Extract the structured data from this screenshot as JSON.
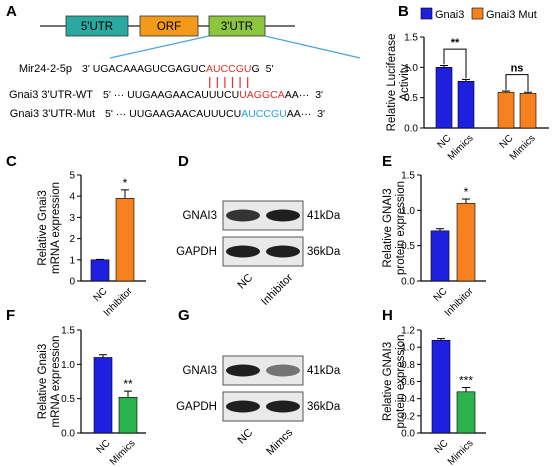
{
  "panels": {
    "A": "A",
    "B": "B",
    "C": "C",
    "D": "D",
    "E": "E",
    "F": "F",
    "G": "G",
    "H": "H"
  },
  "diagram": {
    "utr5": "5'UTR",
    "orf": "ORF",
    "utr3": "3'UTR",
    "colors": {
      "utr5": "#2aa9a0",
      "orf": "#f39a1d",
      "utr3": "#8cc63f",
      "line": "#4aa5dc"
    },
    "rows": [
      {
        "name": "Mir24-2-5p",
        "left_end": "3'",
        "seq_plain": "UGACAAAGUCGAGUC",
        "seq_hl": "AUCCGU",
        "seq_tail": "G",
        "right_end": "5'",
        "hl_color": "#e0312b"
      },
      {
        "name": "Gnai3 3'UTR-WT",
        "left_end": "5' ···",
        "seq_plain": "UUGAAGAACAUUUCU",
        "seq_hl": "UAGGCA",
        "seq_tail": "AA···",
        "right_end": "3'",
        "hl_color": "#e0312b"
      },
      {
        "name": "Gnai3 3'UTR-Mut",
        "left_end": "5' ···",
        "seq_plain": "UUGAAGAACAUUUCU",
        "seq_hl": "AUCCGU",
        "seq_tail": "AA···",
        "right_end": "3'",
        "hl_color": "#29a3dd"
      }
    ]
  },
  "blots": {
    "D": {
      "proteins": [
        "GNAI3",
        "GAPDH"
      ],
      "sizes": [
        "41kDa",
        "36kDa"
      ],
      "lanes": [
        "NC",
        "Inhibitor"
      ]
    },
    "G": {
      "proteins": [
        "GNAI3",
        "GAPDH"
      ],
      "sizes": [
        "41kDa",
        "36kDa"
      ],
      "lanes": [
        "NC",
        "Mimcs"
      ]
    }
  },
  "chart_data": [
    {
      "panel": "B",
      "type": "bar",
      "ylabel": "Relative Luciferase Activity",
      "ylim": [
        0,
        1.5
      ],
      "yticks": [
        "0.0",
        "0.5",
        "1.0",
        "1.5"
      ],
      "groups": [
        "Gnai3",
        "Gnai3 Mut"
      ],
      "categories": [
        "NC",
        "Mimics",
        "NC",
        "Mimics"
      ],
      "values": [
        1.0,
        0.77,
        0.59,
        0.57
      ],
      "errors": [
        0.03,
        0.03,
        0.02,
        0.02
      ],
      "colors": [
        "#1f1fe0",
        "#1f1fe0",
        "#f5821f",
        "#f5821f"
      ],
      "legend": [
        {
          "name": "Gnai3",
          "color": "#1f1fe0"
        },
        {
          "name": "Gnai3 Mut",
          "color": "#f5821f"
        }
      ],
      "legend_position": "top",
      "significance": [
        "**",
        "ns"
      ]
    },
    {
      "panel": "C",
      "type": "bar",
      "ylabel": "Relative Gnai3 mRNA expression",
      "ylim": [
        0,
        5
      ],
      "yticks": [
        "0",
        "1",
        "2",
        "3",
        "4",
        "5"
      ],
      "categories": [
        "NC",
        "Inhibitor"
      ],
      "values": [
        1.0,
        3.9
      ],
      "errors": [
        0.02,
        0.4
      ],
      "colors": [
        "#1f1fe0",
        "#f5821f"
      ],
      "significance": "*"
    },
    {
      "panel": "E",
      "type": "bar",
      "ylabel": "Relative GNAI3 protein expression",
      "ylim": [
        0,
        1.5
      ],
      "yticks": [
        "0.0",
        "0.5",
        "1.0",
        "1.5"
      ],
      "categories": [
        "NC",
        "Inhibitor"
      ],
      "values": [
        0.71,
        1.1
      ],
      "errors": [
        0.03,
        0.06
      ],
      "colors": [
        "#1f1fe0",
        "#f5821f"
      ],
      "significance": "*"
    },
    {
      "panel": "F",
      "type": "bar",
      "ylabel": "Relative Gnai3 mRNA expression",
      "ylim": [
        0,
        1.5
      ],
      "yticks": [
        "0.0",
        "0.5",
        "1.0",
        "1.5"
      ],
      "categories": [
        "NC",
        "Mimics"
      ],
      "values": [
        1.1,
        0.52
      ],
      "errors": [
        0.04,
        0.09
      ],
      "colors": [
        "#1f1fe0",
        "#2bb24c"
      ],
      "significance": "**"
    },
    {
      "panel": "H",
      "type": "bar",
      "ylabel": "Relative GNAI3 protein expression",
      "ylim": [
        0,
        1.2
      ],
      "yticks": [
        "0.0",
        "0.2",
        "0.4",
        "0.6",
        "0.8",
        "1.0",
        "1.2"
      ],
      "categories": [
        "NC",
        "Mimics"
      ],
      "values": [
        1.08,
        0.48
      ],
      "errors": [
        0.02,
        0.05
      ],
      "colors": [
        "#1f1fe0",
        "#2bb24c"
      ],
      "significance": "***"
    }
  ]
}
